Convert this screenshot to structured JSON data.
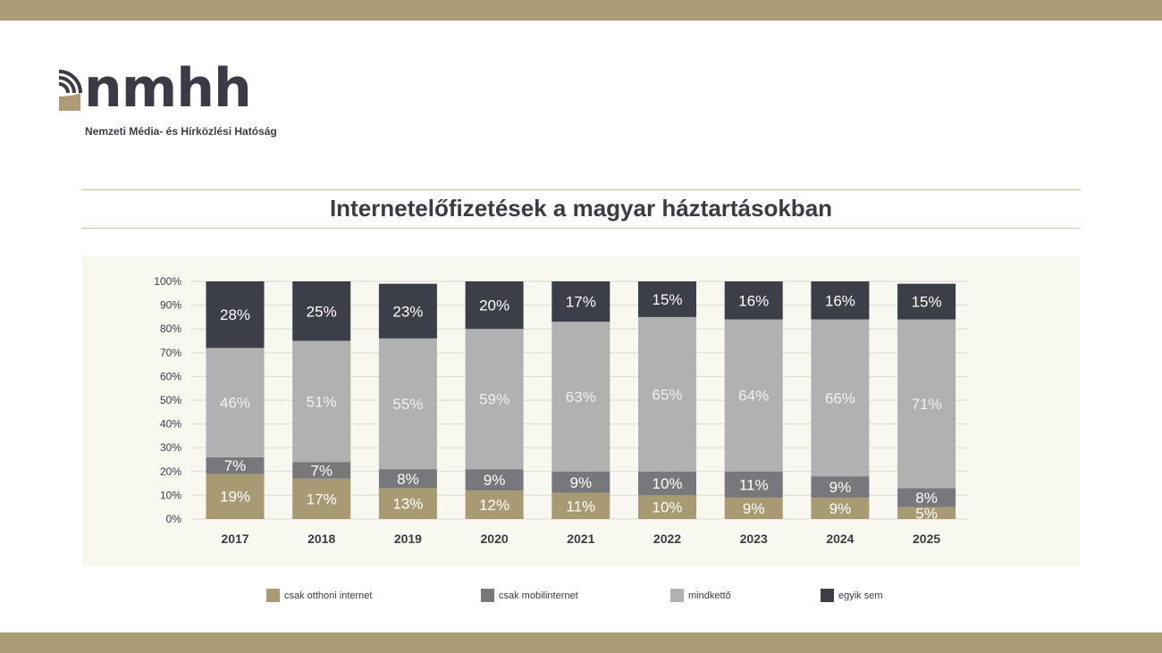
{
  "logo": {
    "wordmark": "nmhh",
    "subtitle": "Nemzeti Média- és Hírközlési Hatóság"
  },
  "colors": {
    "band": "#ab9c76",
    "home": "#a89a72",
    "mobile": "#78787c",
    "both": "#b1b1b1",
    "none": "#3c3e48"
  },
  "chart_data": {
    "type": "bar",
    "stacked": true,
    "title": "Internetelőfizetések a magyar háztartásokban",
    "categories": [
      "2017",
      "2018",
      "2019",
      "2020",
      "2021",
      "2022",
      "2023",
      "2024",
      "2025"
    ],
    "yticks": [
      "0%",
      "10%",
      "20%",
      "30%",
      "40%",
      "50%",
      "60%",
      "70%",
      "80%",
      "90%",
      "100%"
    ],
    "ylim": [
      0,
      100
    ],
    "grid": true,
    "legend_position": "bottom",
    "series": [
      {
        "name": "csak otthoni internet",
        "color": "#a89a72",
        "values": [
          19,
          17,
          13,
          12,
          11,
          10,
          9,
          9,
          5
        ]
      },
      {
        "name": "csak mobilinternet",
        "color": "#78787c",
        "values": [
          7,
          7,
          8,
          9,
          9,
          10,
          11,
          9,
          8
        ]
      },
      {
        "name": "mindkettő",
        "color": "#b1b1b1",
        "values": [
          46,
          51,
          55,
          59,
          63,
          65,
          64,
          66,
          71
        ]
      },
      {
        "name": "egyik sem",
        "color": "#3c3e48",
        "values": [
          28,
          25,
          23,
          20,
          17,
          15,
          16,
          16,
          15
        ]
      }
    ]
  }
}
